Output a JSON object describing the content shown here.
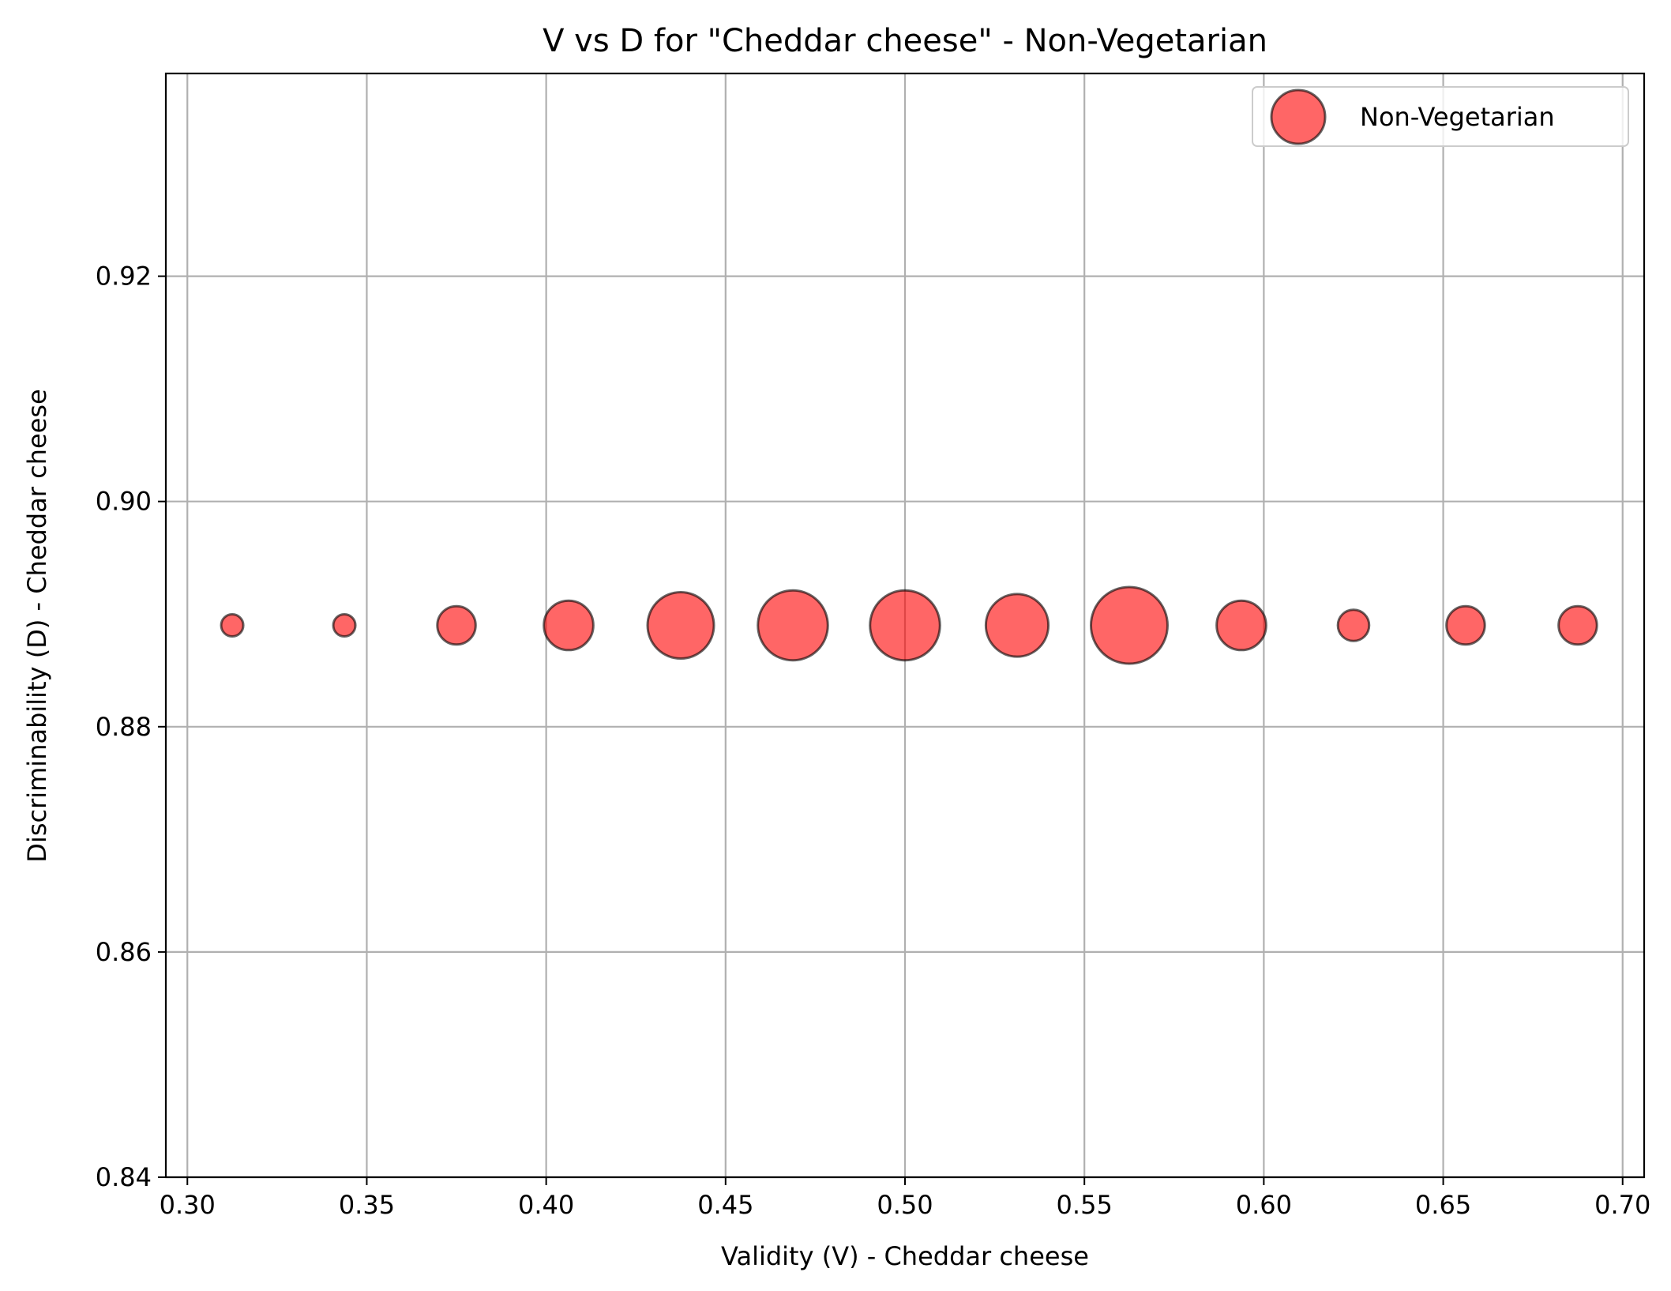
{
  "chart_data": {
    "type": "scatter",
    "title": "V vs D for \"Cheddar cheese\" - Non-Vegetarian",
    "xlabel": "Validity (V) - Cheddar cheese",
    "ylabel": "Discriminability (D) - Cheddar cheese",
    "xlim": [
      0.294,
      0.706
    ],
    "ylim": [
      0.84,
      0.938
    ],
    "xticks": [
      0.3,
      0.35,
      0.4,
      0.45,
      0.5,
      0.55,
      0.6,
      0.65,
      0.7
    ],
    "xtick_labels": [
      "0.30",
      "0.35",
      "0.40",
      "0.45",
      "0.50",
      "0.55",
      "0.60",
      "0.65",
      "0.70"
    ],
    "yticks": [
      0.84,
      0.86,
      0.88,
      0.9,
      0.92
    ],
    "ytick_labels": [
      "0.84",
      "0.86",
      "0.88",
      "0.90",
      "0.92"
    ],
    "grid": true,
    "legend_position": "top-right",
    "colors": {
      "marker_fill": "#ff0000",
      "marker_edge": "#000000"
    },
    "series": [
      {
        "name": "Non-Vegetarian",
        "x": [
          0.3125,
          0.34375,
          0.375,
          0.40625,
          0.4375,
          0.46875,
          0.5,
          0.53125,
          0.5625,
          0.59375,
          0.625,
          0.65625,
          0.6875
        ],
        "y": [
          0.889,
          0.889,
          0.889,
          0.889,
          0.889,
          0.889,
          0.889,
          0.889,
          0.889,
          0.889,
          0.889,
          0.889,
          0.889
        ],
        "sizes": [
          1,
          1,
          3,
          5,
          9,
          10,
          10,
          8,
          12,
          5,
          2,
          3,
          3
        ]
      }
    ]
  }
}
